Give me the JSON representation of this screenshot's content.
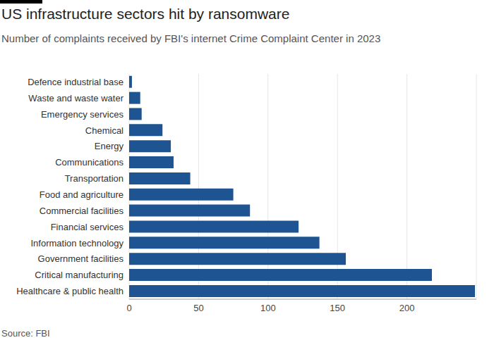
{
  "chart_data": {
    "type": "bar",
    "title": "US infrastructure sectors hit by ransomware",
    "subtitle": "Number of complaints received by FBI's internet Crime Complaint Center in 2023",
    "source": "Source: FBI",
    "categories": [
      "Defence industrial base",
      "Waste and waste water",
      "Emergency services",
      "Chemical",
      "Energy",
      "Communications",
      "Transportation",
      "Food and agriculture",
      "Commercial facilities",
      "Financial services",
      "Information technology",
      "Government facilities",
      "Critical manufacturing",
      "Healthcare & public health"
    ],
    "values": [
      2,
      8,
      9,
      24,
      30,
      32,
      44,
      75,
      87,
      122,
      137,
      156,
      218,
      249
    ],
    "color": "#1f5493",
    "orientation": "horizontal",
    "xlim": [
      0,
      250
    ],
    "xticks": [
      0,
      50,
      100,
      150,
      200
    ],
    "grid": true
  }
}
